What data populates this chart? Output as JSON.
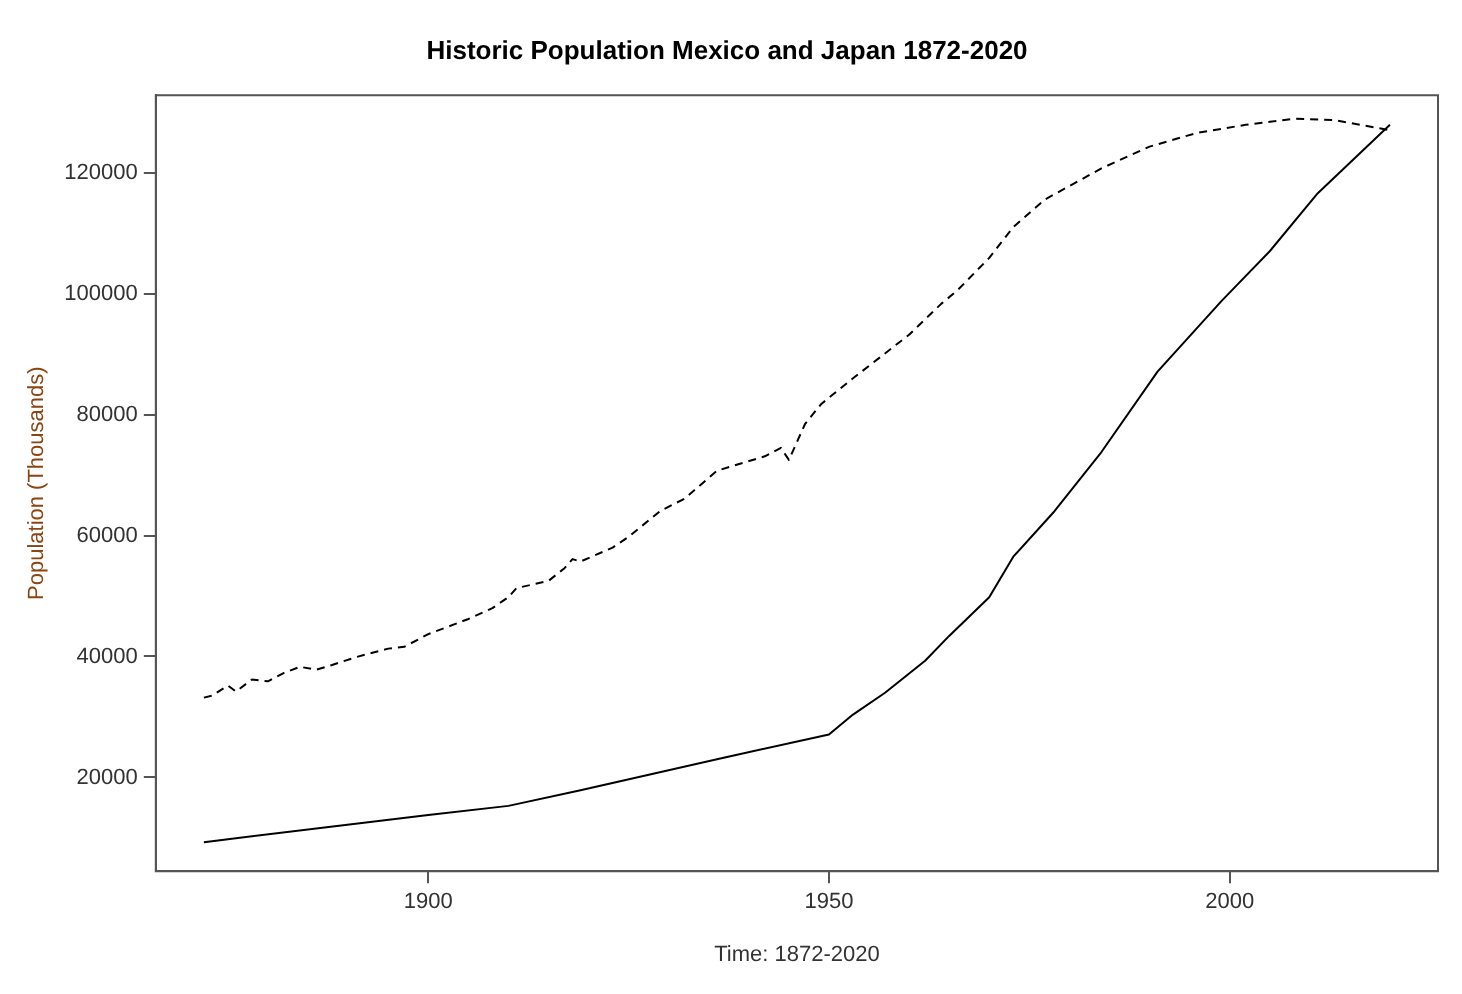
{
  "chart_data": {
    "type": "line",
    "title": "Historic Population Mexico and Japan 1872-2020",
    "xlabel": "Time: 1872-2020",
    "ylabel": "Population (Thousands)",
    "xlim": [
      1866,
      2026
    ],
    "xticks": [
      1900,
      1950,
      2000
    ],
    "ylim": [
      4500,
      132800
    ],
    "yticks": [
      20000,
      40000,
      60000,
      80000,
      100000,
      120000
    ],
    "grid": false,
    "legend": false,
    "marker": "none",
    "series": [
      {
        "color": "#000000",
        "line_style": "dashed",
        "x": [
          1872,
          1873,
          1875,
          1876,
          1878,
          1880,
          1882,
          1884,
          1886,
          1888,
          1891,
          1895,
          1897,
          1900,
          1905,
          1908,
          1910,
          1911,
          1915,
          1917,
          1918,
          1919,
          1923,
          1925,
          1929,
          1932,
          1936,
          1939,
          1942,
          1944,
          1945,
          1947,
          1949,
          1953,
          1960,
          1964,
          1966,
          1970,
          1973,
          1977,
          1984,
          1990,
          1996,
          2002,
          2008,
          2013,
          2020
        ],
        "values": [
          33200,
          33500,
          35200,
          34200,
          36200,
          35900,
          37300,
          38300,
          37800,
          38600,
          39900,
          41300,
          41600,
          43700,
          46200,
          48000,
          49800,
          51300,
          52500,
          54600,
          56100,
          55700,
          58000,
          59800,
          64100,
          66100,
          70700,
          71900,
          73100,
          74500,
          72500,
          78400,
          81700,
          86000,
          93200,
          98300,
          100500,
          105900,
          111000,
          115600,
          120700,
          124300,
          126600,
          127900,
          128900,
          128700,
          127000
        ]
      },
      {
        "color": "#000000",
        "line_style": "solid",
        "x": [
          1872,
          1900,
          1910,
          1919,
          1937,
          1950,
          1953,
          1957,
          1962,
          1965,
          1970,
          1973,
          1978,
          1984,
          1991,
          1999,
          2005,
          2011,
          2020
        ],
        "values": [
          9300,
          13800,
          15300,
          17900,
          23300,
          27100,
          30400,
          34000,
          39300,
          43400,
          49800,
          56500,
          63800,
          73800,
          87100,
          98800,
          107000,
          116600,
          127900
        ]
      }
    ]
  }
}
